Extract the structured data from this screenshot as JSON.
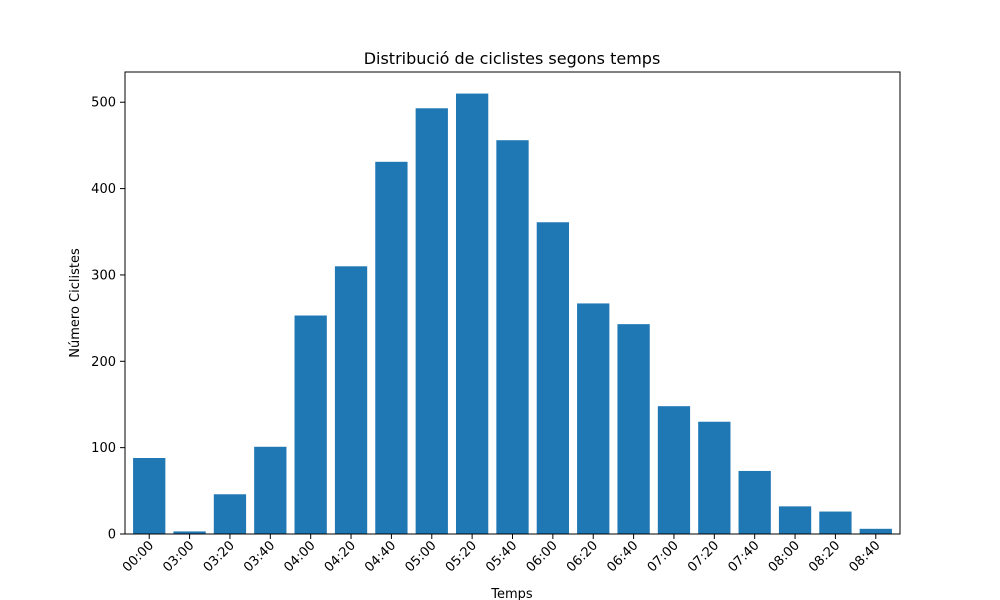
{
  "chart_data": {
    "type": "bar",
    "title": "Distribució de ciclistes segons temps",
    "xlabel": "Temps",
    "ylabel": "Número Ciclistes",
    "categories": [
      "00:00",
      "03:00",
      "03:20",
      "03:40",
      "04:00",
      "04:20",
      "04:40",
      "05:00",
      "05:20",
      "05:40",
      "06:00",
      "06:20",
      "06:40",
      "07:00",
      "07:20",
      "07:40",
      "08:00",
      "08:20",
      "08:40"
    ],
    "values": [
      88,
      3,
      46,
      101,
      253,
      310,
      431,
      493,
      510,
      456,
      361,
      267,
      243,
      148,
      130,
      73,
      32,
      26,
      6
    ],
    "ylim": [
      0,
      535
    ],
    "yticks": [
      0,
      100,
      200,
      300,
      400,
      500
    ],
    "bar_color": "#1f77b4",
    "grid": false,
    "legend": "none"
  }
}
